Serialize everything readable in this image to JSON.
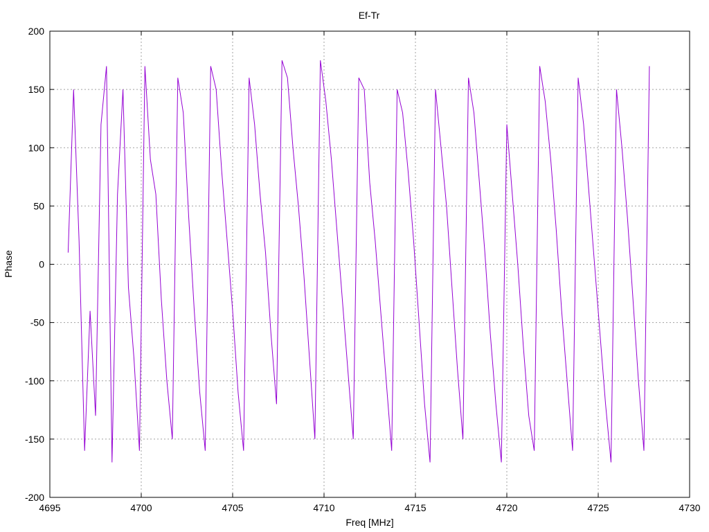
{
  "chart_data": {
    "type": "line",
    "title": "Ef-Tr",
    "xlabel": "Freq [MHz]",
    "ylabel": "Phase",
    "xlim": [
      4695,
      4730
    ],
    "ylim": [
      -200,
      200
    ],
    "xticks": [
      4695,
      4700,
      4705,
      4710,
      4715,
      4720,
      4725,
      4730
    ],
    "yticks": [
      -200,
      -150,
      -100,
      -50,
      0,
      50,
      100,
      150,
      200
    ],
    "grid": true,
    "series_color": "#9400d3",
    "series": [
      {
        "x": [
          4696.0,
          4696.3,
          4696.6,
          4696.9,
          4697.2,
          4697.5,
          4697.8,
          4698.1,
          4698.4,
          4698.7,
          4699.0,
          4699.3,
          4699.6,
          4699.9,
          4700.2,
          4700.5,
          4700.8,
          4701.1,
          4701.4,
          4701.7,
          4702.0,
          4702.3,
          4702.6,
          4702.9,
          4703.2,
          4703.5,
          4703.8,
          4704.1,
          4704.4,
          4704.7,
          4705.0,
          4705.3,
          4705.6,
          4705.9,
          4706.2,
          4706.5,
          4706.8,
          4707.1,
          4707.4,
          4707.7,
          4708.0,
          4708.3,
          4708.6,
          4708.9,
          4709.2,
          4709.5,
          4709.8,
          4710.1,
          4710.4,
          4710.7,
          4711.0,
          4711.3,
          4711.6,
          4711.9,
          4712.2,
          4712.5,
          4712.8,
          4713.1,
          4713.4,
          4713.7,
          4714.0,
          4714.3,
          4714.6,
          4714.9,
          4715.2,
          4715.5,
          4715.8,
          4716.1,
          4716.4,
          4716.7,
          4717.0,
          4717.3,
          4717.6,
          4717.9,
          4718.2,
          4718.5,
          4718.8,
          4719.1,
          4719.4,
          4719.7,
          4720.0,
          4720.3,
          4720.6,
          4720.9,
          4721.2,
          4721.5,
          4721.8,
          4722.1,
          4722.4,
          4722.7,
          4723.0,
          4723.3,
          4723.6,
          4723.9,
          4724.2,
          4724.5,
          4724.8,
          4725.1,
          4725.4,
          4725.7,
          4726.0,
          4726.3,
          4726.6,
          4726.9,
          4727.2,
          4727.5,
          4727.8
        ],
        "y": [
          10,
          150,
          20,
          -160,
          -40,
          -130,
          120,
          170,
          -170,
          60,
          150,
          -20,
          -80,
          -160,
          170,
          90,
          60,
          -30,
          -100,
          -150,
          160,
          130,
          40,
          -40,
          -110,
          -160,
          170,
          150,
          80,
          20,
          -40,
          -110,
          -160,
          160,
          120,
          60,
          10,
          -60,
          -120,
          175,
          160,
          100,
          50,
          -10,
          -80,
          -150,
          175,
          140,
          90,
          30,
          -30,
          -90,
          -150,
          160,
          150,
          70,
          20,
          -40,
          -100,
          -160,
          150,
          130,
          80,
          20,
          -50,
          -120,
          -170,
          150,
          100,
          50,
          -20,
          -90,
          -150,
          160,
          130,
          70,
          10,
          -60,
          -120,
          -170,
          120,
          60,
          0,
          -70,
          -130,
          -160,
          170,
          140,
          90,
          30,
          -40,
          -100,
          -160,
          160,
          120,
          60,
          0,
          -60,
          -120,
          -170,
          150,
          100,
          40,
          -30,
          -100,
          -160,
          170
        ]
      }
    ]
  }
}
